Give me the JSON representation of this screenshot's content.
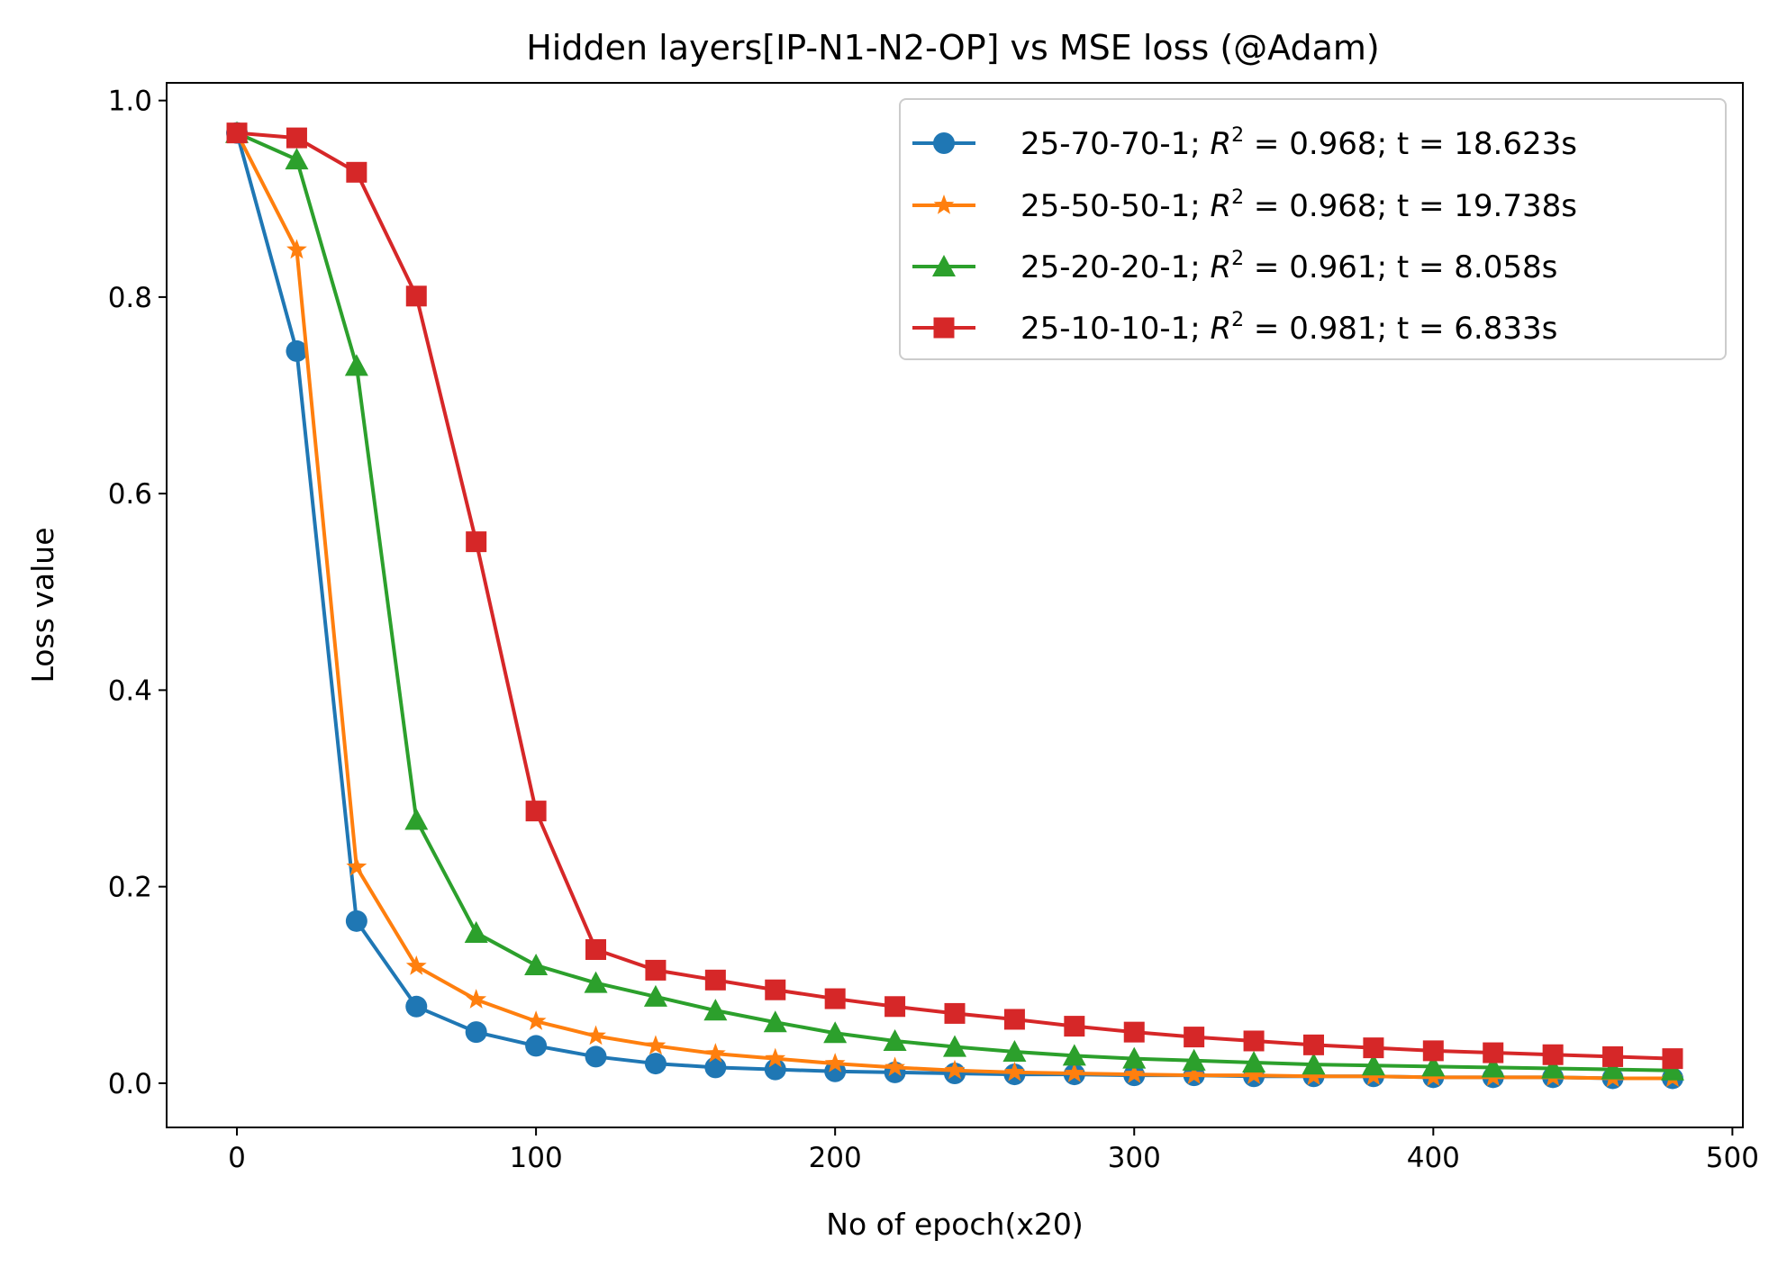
{
  "chart_data": {
    "type": "line",
    "title": "Hidden layers[IP-N1-N2-OP] vs MSE loss (@Adam)",
    "xlabel": "No of epoch(x20)",
    "ylabel": "Loss value",
    "xlim": [
      -23.5,
      503.5
    ],
    "ylim": [
      -0.045,
      1.018
    ],
    "xticks": [
      0,
      100,
      200,
      300,
      400,
      500
    ],
    "xtick_labels": [
      "0",
      "100",
      "200",
      "300",
      "400",
      "500"
    ],
    "yticks": [
      0.0,
      0.2,
      0.4,
      0.6,
      0.8,
      1.0
    ],
    "ytick_labels": [
      "0.0",
      "0.2",
      "0.4",
      "0.6",
      "0.8",
      "1.0"
    ],
    "grid": false,
    "legend_position": "top-right",
    "x": [
      0,
      20,
      40,
      60,
      80,
      100,
      120,
      140,
      160,
      180,
      200,
      220,
      240,
      260,
      280,
      300,
      320,
      340,
      360,
      380,
      400,
      420,
      440,
      460,
      480
    ],
    "series": [
      {
        "name": "25-70-70-1",
        "r2": "0.968",
        "time": "18.623s",
        "color": "#1f77b4",
        "marker": "circle",
        "values": [
          0.967,
          0.745,
          0.165,
          0.078,
          0.052,
          0.038,
          0.027,
          0.02,
          0.016,
          0.014,
          0.012,
          0.011,
          0.01,
          0.009,
          0.009,
          0.008,
          0.008,
          0.007,
          0.007,
          0.007,
          0.006,
          0.006,
          0.006,
          0.005,
          0.005
        ]
      },
      {
        "name": "25-50-50-1",
        "r2": "0.968",
        "time": "19.738s",
        "color": "#ff7f0e",
        "marker": "star",
        "values": [
          0.967,
          0.848,
          0.22,
          0.119,
          0.085,
          0.063,
          0.048,
          0.038,
          0.03,
          0.025,
          0.02,
          0.016,
          0.013,
          0.011,
          0.01,
          0.009,
          0.008,
          0.008,
          0.007,
          0.007,
          0.006,
          0.006,
          0.006,
          0.005,
          0.005
        ]
      },
      {
        "name": "25-20-20-1",
        "r2": "0.961",
        "time": "8.058s",
        "color": "#2ca02c",
        "marker": "triangle",
        "values": [
          0.967,
          0.94,
          0.73,
          0.268,
          0.153,
          0.12,
          0.102,
          0.088,
          0.074,
          0.062,
          0.051,
          0.043,
          0.037,
          0.032,
          0.028,
          0.025,
          0.023,
          0.021,
          0.019,
          0.018,
          0.017,
          0.016,
          0.015,
          0.014,
          0.013
        ]
      },
      {
        "name": "25-10-10-1",
        "r2": "0.981",
        "time": "6.833s",
        "color": "#d62728",
        "marker": "square",
        "values": [
          0.967,
          0.962,
          0.927,
          0.801,
          0.551,
          0.277,
          0.136,
          0.115,
          0.105,
          0.095,
          0.086,
          0.078,
          0.071,
          0.065,
          0.058,
          0.052,
          0.047,
          0.043,
          0.039,
          0.036,
          0.033,
          0.031,
          0.029,
          0.027,
          0.025
        ]
      }
    ]
  }
}
